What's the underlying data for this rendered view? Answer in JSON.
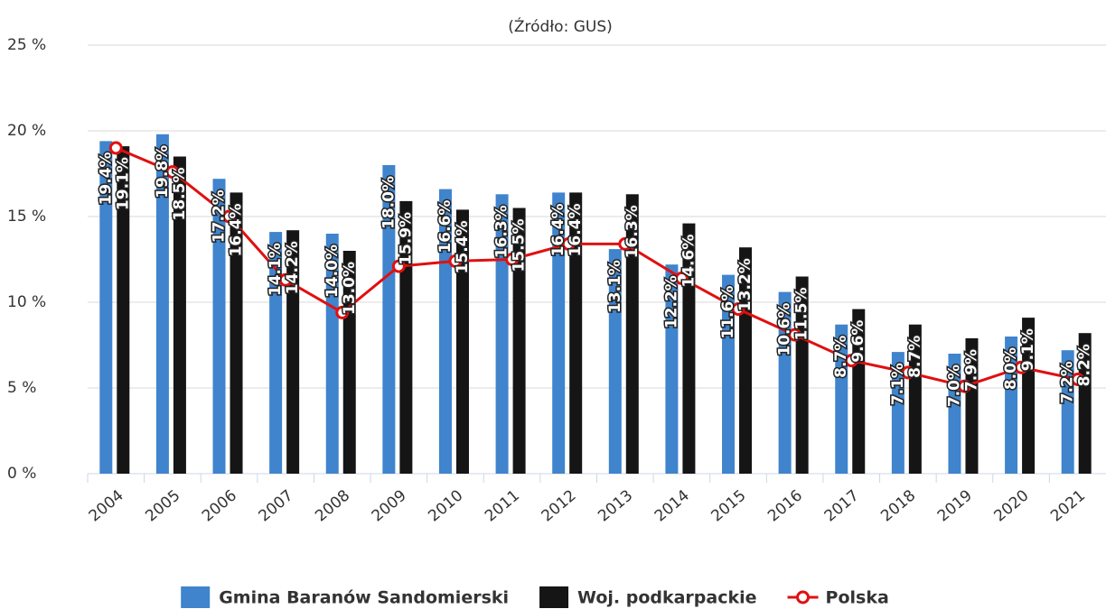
{
  "chart_data": {
    "type": "bar_line",
    "subtitle": "(Źródło: GUS)",
    "categories": [
      "2004",
      "2005",
      "2006",
      "2007",
      "2008",
      "2009",
      "2010",
      "2011",
      "2012",
      "2013",
      "2014",
      "2015",
      "2016",
      "2017",
      "2018",
      "2019",
      "2020",
      "2021"
    ],
    "series": [
      {
        "name": "Gmina Baranów Sandomierski",
        "type": "bar",
        "color": "#3f84cc",
        "values": [
          19.4,
          19.8,
          17.2,
          14.1,
          14.0,
          18.0,
          16.6,
          16.3,
          16.4,
          13.1,
          12.2,
          11.6,
          10.6,
          8.7,
          7.1,
          7.0,
          8.0,
          7.2
        ],
        "value_labels": [
          "19.4%",
          "19.8%",
          "17.2%",
          "14.1%",
          "14.0%",
          "18.0%",
          "16.6%",
          "16.3%",
          "16.4%",
          "13.1%",
          "12.2%",
          "11.6%",
          "10.6%",
          "8.7%",
          "7.1%",
          "7.0%",
          "8.0%",
          "7.2%"
        ]
      },
      {
        "name": "Woj. podkarpackie",
        "type": "bar",
        "color": "#151515",
        "values": [
          19.1,
          18.5,
          16.4,
          14.2,
          13.0,
          15.9,
          15.4,
          15.5,
          16.4,
          16.3,
          14.6,
          13.2,
          11.5,
          9.6,
          8.7,
          7.9,
          9.1,
          8.2
        ],
        "value_labels": [
          "19.1%",
          "18.5%",
          "16.4%",
          "14.2%",
          "13.0%",
          "15.9%",
          "15.4%",
          "15.5%",
          "16.4%",
          "16.3%",
          "14.6%",
          "13.2%",
          "11.5%",
          "9.6%",
          "8.7%",
          "7.9%",
          "9.1%",
          "8.2%"
        ]
      },
      {
        "name": "Polska",
        "type": "line",
        "color": "#e01010",
        "values": [
          19.0,
          17.6,
          15.0,
          11.3,
          9.4,
          12.1,
          12.4,
          12.5,
          13.4,
          13.4,
          11.4,
          9.6,
          8.1,
          6.6,
          5.9,
          5.1,
          6.2,
          5.5
        ]
      }
    ],
    "ylim": [
      0,
      25
    ],
    "yticks": [
      {
        "value": 0,
        "label": "0 %"
      },
      {
        "value": 5,
        "label": "5 %"
      },
      {
        "value": 10,
        "label": "10 %"
      },
      {
        "value": 15,
        "label": "15 %"
      },
      {
        "value": 20,
        "label": "20 %"
      },
      {
        "value": 25,
        "label": "25 %"
      }
    ],
    "grid": true
  }
}
